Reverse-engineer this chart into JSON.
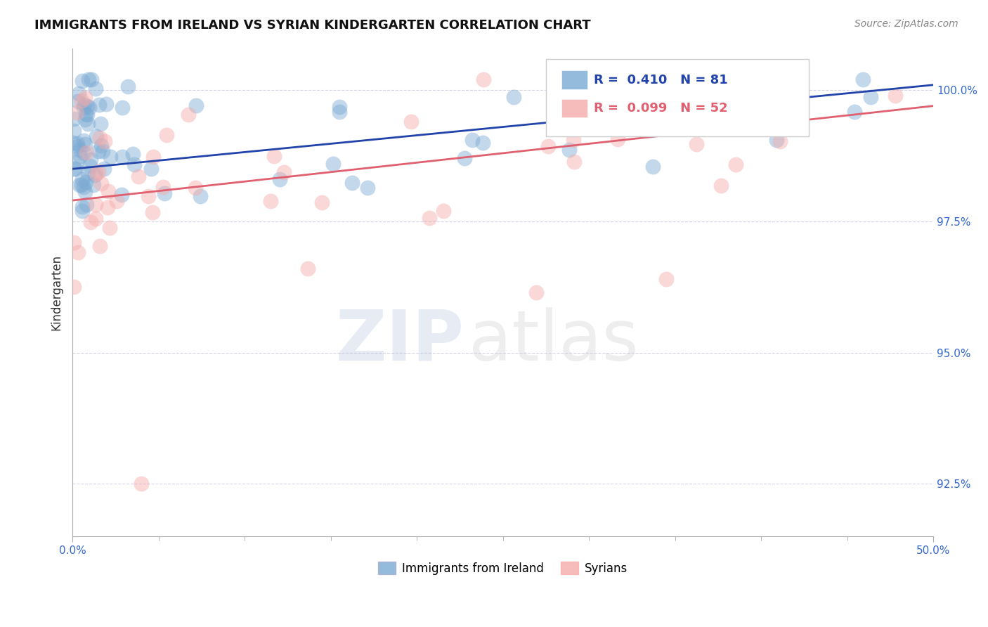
{
  "title": "IMMIGRANTS FROM IRELAND VS SYRIAN KINDERGARTEN CORRELATION CHART",
  "source": "Source: ZipAtlas.com",
  "ylabel": "Kindergarten",
  "xlim": [
    0.0,
    0.5
  ],
  "ylim": [
    0.915,
    1.008
  ],
  "xticklabels_ends": [
    "0.0%",
    "50.0%"
  ],
  "xtick_ends": [
    0.0,
    0.5
  ],
  "ytick_vals": [
    0.925,
    0.95,
    0.975,
    1.0
  ],
  "yticklabels": [
    "92.5%",
    "95.0%",
    "97.5%",
    "100.0%"
  ],
  "legend_label_blue": "Immigrants from Ireland",
  "legend_label_pink": "Syrians",
  "blue_color": "#7BAAD4",
  "pink_color": "#F4AAAA",
  "blue_line_color": "#2244AA",
  "pink_line_color": "#E06070",
  "watermark_zip": "ZIP",
  "watermark_atlas": "atlas",
  "R_blue": 0.41,
  "N_blue": 81,
  "R_pink": 0.099,
  "N_pink": 52,
  "blue_trend": [
    0.985,
    1.001
  ],
  "pink_trend": [
    0.979,
    0.997
  ]
}
